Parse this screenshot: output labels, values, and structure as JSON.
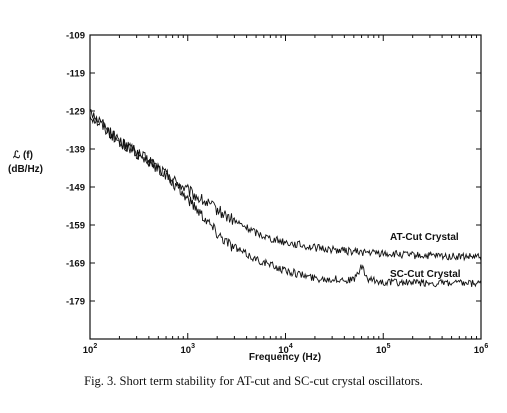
{
  "caption": "Fig. 3.  Short term stability for AT-cut and SC-cut crystal oscillators.",
  "chart_data": {
    "type": "line",
    "title": "",
    "xlabel": "Frequency (Hz)",
    "ylabel_symbol": "ℒ (f)",
    "ylabel_unit": "(dB/Hz)",
    "x_scale": "log",
    "xlim": [
      100,
      1000000
    ],
    "ylim": [
      -189,
      -109
    ],
    "x_ticks": [
      {
        "base": "10",
        "exp": "2",
        "value": 100
      },
      {
        "base": "10",
        "exp": "3",
        "value": 1000
      },
      {
        "base": "10",
        "exp": "4",
        "value": 10000
      },
      {
        "base": "10",
        "exp": "5",
        "value": 100000
      },
      {
        "base": "10",
        "exp": "6",
        "value": 1000000
      }
    ],
    "y_ticks": [
      "-109",
      "-119",
      "-129",
      "-139",
      "-149",
      "-159",
      "-169",
      "-179"
    ],
    "grid": false,
    "series": [
      {
        "name": "AT-Cut Crystal",
        "color": "#111111",
        "x": [
          100,
          150,
          200,
          300,
          500,
          700,
          1000,
          1500,
          2000,
          3000,
          5000,
          7000,
          10000,
          20000,
          50000,
          100000,
          200000,
          500000,
          1000000
        ],
        "y": [
          -130,
          -134,
          -137,
          -140,
          -144,
          -147,
          -150,
          -153,
          -155,
          -158,
          -161,
          -162.5,
          -163.5,
          -165,
          -166,
          -166.5,
          -167,
          -167.3,
          -167.5
        ]
      },
      {
        "name": "SC-Cut Crystal",
        "color": "#111111",
        "x": [
          100,
          150,
          200,
          300,
          500,
          700,
          1000,
          1500,
          2000,
          3000,
          5000,
          7000,
          10000,
          20000,
          50000,
          60000,
          70000,
          100000,
          200000,
          500000,
          1000000
        ],
        "y": [
          -129,
          -134,
          -137,
          -140,
          -144,
          -148,
          -152,
          -157,
          -161,
          -165,
          -168,
          -169.5,
          -171,
          -173,
          -173.5,
          -170,
          -173.5,
          -174,
          -174.2,
          -174.4,
          -174.5
        ]
      }
    ]
  }
}
